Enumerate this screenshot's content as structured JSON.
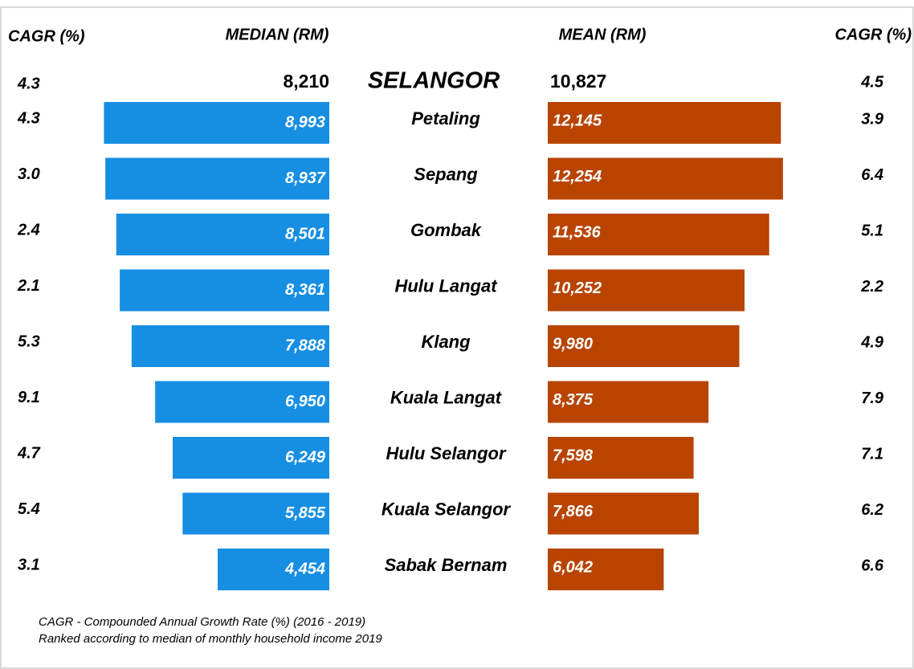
{
  "headers": {
    "cagr_left": "CAGR (%)",
    "median": "MEDIAN (RM)",
    "mean": "MEAN (RM)",
    "cagr_right": "CAGR (%)"
  },
  "chart_data": {
    "type": "butterfly_bar",
    "state": {
      "name": "SELANGOR",
      "values": [
        8210,
        10827
      ],
      "value_labels": [
        "8,210",
        "10,827"
      ],
      "cagr": [
        4.3,
        4.5
      ]
    },
    "categories": [
      "Petaling",
      "Sepang",
      "Gombak",
      "Hulu Langat",
      "Klang",
      "Kuala Langat",
      "Hulu Selangor",
      "Kuala Selangor",
      "Sabak Bernam"
    ],
    "series": [
      {
        "name": "MEDIAN (RM)",
        "color": "#168ee2",
        "values": [
          8993,
          8937,
          8501,
          8361,
          7888,
          6950,
          6249,
          5855,
          4454
        ],
        "value_labels": [
          "8,993",
          "8,937",
          "8,501",
          "8,361",
          "7,888",
          "6,950",
          "6,249",
          "5,855",
          "4,454"
        ]
      },
      {
        "name": "MEAN (RM)",
        "color": "#b84400",
        "values": [
          12145,
          12254,
          11536,
          10252,
          9980,
          8375,
          7598,
          7866,
          6042
        ],
        "value_labels": [
          "12,145",
          "12,254",
          "11,536",
          "10,252",
          "9,980",
          "8,375",
          "7,598",
          "7,866",
          "6,042"
        ]
      }
    ],
    "cagr": [
      {
        "name": "CAGR (%)",
        "values": [
          4.3,
          3.0,
          2.4,
          2.1,
          5.3,
          9.1,
          4.7,
          5.4,
          3.1
        ],
        "value_labels": [
          "4.3",
          "3.0",
          "2.4",
          "2.1",
          "5.3",
          "9.1",
          "4.7",
          "5.4",
          "3.1"
        ]
      },
      {
        "name": "CAGR (%)",
        "values": [
          3.9,
          6.4,
          5.1,
          2.2,
          4.9,
          7.9,
          7.1,
          6.2,
          6.6
        ],
        "value_labels": [
          "3.9",
          "6.4",
          "5.1",
          "2.2",
          "4.9",
          "7.9",
          "7.1",
          "6.2",
          "6.6"
        ]
      }
    ]
  },
  "notes": [
    "CAGR - Compounded Annual Growth Rate (%) (2016 - 2019)",
    "Ranked according to median of monthly household income 2019"
  ]
}
